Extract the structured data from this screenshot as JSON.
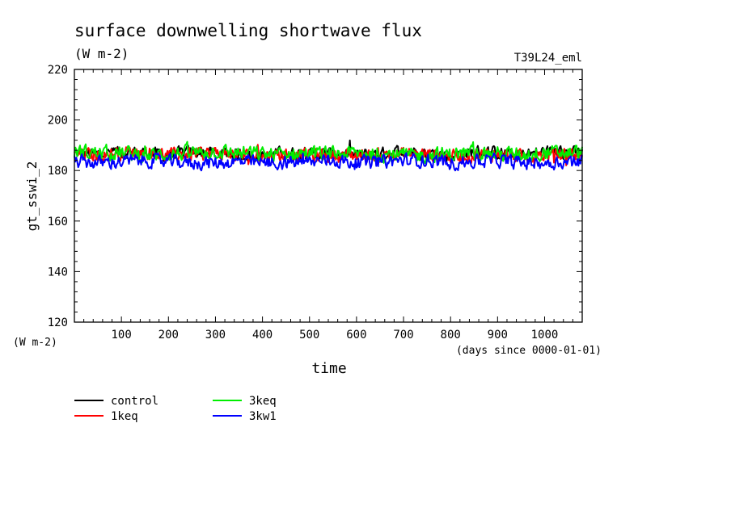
{
  "chart_data": {
    "type": "line",
    "title": "surface downwelling shortwave flux",
    "subtitle": "(W m-2)",
    "run_label": "T39L24_eml",
    "ylabel": "gt_sswi_2",
    "y_unit": "(W m-2)",
    "xlabel": "time",
    "x_unit": "(days since 0000-01-01)",
    "xlim": [
      0,
      1080
    ],
    "ylim": [
      120,
      220
    ],
    "x_ticks": [
      100,
      200,
      300,
      400,
      500,
      600,
      700,
      800,
      900,
      1000
    ],
    "x_tick_labels": [
      "100",
      "200",
      "300",
      "400",
      "500",
      "600",
      "700",
      "800",
      "900",
      "1000"
    ],
    "y_ticks": [
      120,
      140,
      160,
      180,
      200,
      220
    ],
    "y_tick_labels": [
      "120",
      "140",
      "160",
      "180",
      "200",
      "220"
    ],
    "legend_position": "bottom-left",
    "series": [
      {
        "name": "control",
        "color": "#000000",
        "x": [
          0,
          50,
          100,
          150,
          200,
          250,
          300,
          350,
          400,
          450,
          500,
          550,
          600,
          650,
          700,
          750,
          800,
          850,
          900,
          950,
          1000,
          1050,
          1080
        ],
        "values": [
          187,
          186.5,
          187.5,
          187,
          186,
          187.5,
          187,
          186.5,
          186,
          187,
          186.5,
          186.5,
          186,
          186.5,
          188,
          187,
          186,
          187.5,
          187,
          186,
          187.5,
          187,
          187
        ]
      },
      {
        "name": "1keq",
        "color": "#ff0000",
        "x": [
          0,
          50,
          100,
          150,
          200,
          250,
          300,
          350,
          400,
          450,
          500,
          550,
          600,
          650,
          700,
          750,
          800,
          850,
          900,
          950,
          1000,
          1050,
          1080
        ],
        "values": [
          186.5,
          186,
          187,
          187.5,
          186,
          186.5,
          187,
          186,
          185.5,
          186.5,
          186,
          186,
          186,
          186,
          186.5,
          186.5,
          185.5,
          186,
          186.5,
          185.5,
          186,
          186.5,
          186
        ]
      },
      {
        "name": "3keq",
        "color": "#00ee00",
        "x": [
          0,
          50,
          100,
          150,
          200,
          250,
          300,
          350,
          400,
          450,
          500,
          550,
          600,
          650,
          700,
          750,
          800,
          850,
          900,
          950,
          1000,
          1050,
          1080
        ],
        "values": [
          187.5,
          187,
          187,
          186,
          186.5,
          187,
          187.5,
          187,
          186.5,
          186.5,
          187,
          186.5,
          187,
          186.5,
          186,
          186,
          186.5,
          187,
          186.5,
          186.5,
          187,
          187,
          187.5
        ]
      },
      {
        "name": "3kw1",
        "color": "#0000ff",
        "x": [
          0,
          50,
          100,
          150,
          200,
          250,
          300,
          350,
          400,
          450,
          500,
          550,
          600,
          650,
          700,
          750,
          800,
          850,
          900,
          950,
          1000,
          1050,
          1080
        ],
        "values": [
          183.5,
          183,
          183.5,
          184,
          183.5,
          183,
          183,
          183.5,
          183,
          183,
          183.5,
          184,
          183,
          183.5,
          184,
          184,
          183,
          183.5,
          184,
          183,
          183,
          183.5,
          184
        ]
      }
    ]
  }
}
